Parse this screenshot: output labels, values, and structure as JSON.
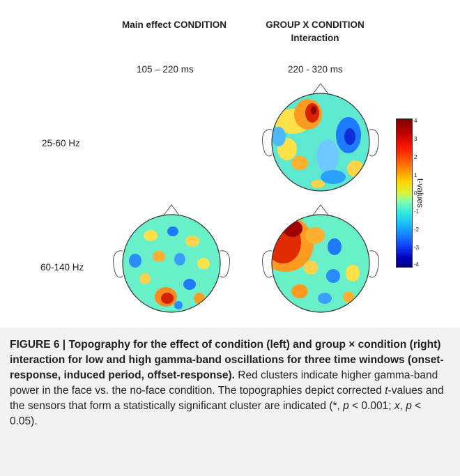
{
  "header": {
    "col1": "Main effect CONDITION",
    "col2_line1": "GROUP X CONDITION",
    "col2_line2": "Interaction"
  },
  "time_windows": {
    "left": "105 – 220 ms",
    "right": "220 - 320 ms"
  },
  "rows": {
    "row1": "25-60 Hz",
    "row2": "60-140 Hz"
  },
  "colorbar": {
    "title": "t-values",
    "ticks": [
      "4",
      "3",
      "2",
      "1",
      "0",
      "-1",
      "-2",
      "-3",
      "-4"
    ]
  },
  "caption": {
    "label": "FIGURE 6 |",
    "title": " Topography for the effect of condition (left) and group × condition (right) interaction for low and high gamma-band oscillations for three time windows (onset-response, induced period, offset-response).",
    "body_part1": " Red clusters indicate higher gamma-band power in the face vs. the no-face condition. The topographies depict corrected ",
    "t_italic": "t",
    "body_part2": "-values and the sensors that form a statistically significant cluster are indicated (*, ",
    "p1": "p",
    "body_part3": " < 0.001; ",
    "x_italic": "x",
    "body_part4": ", ",
    "p2": "p",
    "body_part5": " < 0.05)."
  }
}
